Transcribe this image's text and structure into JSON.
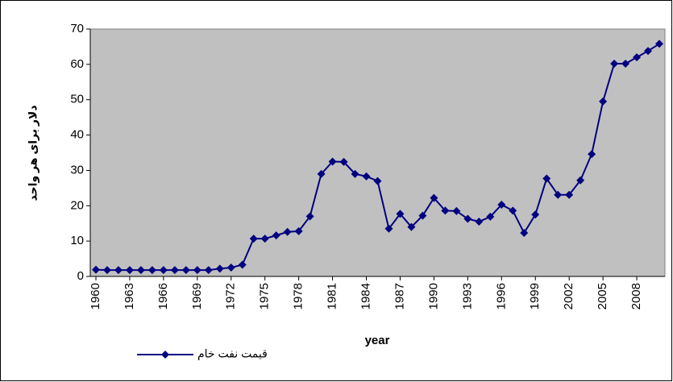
{
  "chart_data": {
    "type": "line",
    "x_label": "year",
    "y_label": "دلار برای هر واحد",
    "x": [
      1960,
      1961,
      1962,
      1963,
      1964,
      1965,
      1966,
      1967,
      1968,
      1969,
      1970,
      1971,
      1972,
      1973,
      1974,
      1975,
      1976,
      1977,
      1978,
      1979,
      1980,
      1981,
      1982,
      1983,
      1984,
      1985,
      1986,
      1987,
      1988,
      1989,
      1990,
      1991,
      1992,
      1993,
      1994,
      1995,
      1996,
      1997,
      1998,
      1999,
      2000,
      2001,
      2002,
      2003,
      2004,
      2005,
      2006,
      2007,
      2008,
      2009,
      2010
    ],
    "series": [
      {
        "name": "قیمت نفت خام",
        "color": "#000080",
        "values": [
          1.9,
          1.8,
          1.8,
          1.8,
          1.8,
          1.8,
          1.8,
          1.8,
          1.8,
          1.8,
          1.8,
          2.2,
          2.5,
          3.3,
          10.7,
          10.7,
          11.6,
          12.6,
          12.8,
          17,
          29,
          32.5,
          32.4,
          29,
          28.3,
          27,
          13.5,
          17.7,
          14,
          17.2,
          22.2,
          18.6,
          18.5,
          16.3,
          15.5,
          16.9,
          20.3,
          18.6,
          12.3,
          17.5,
          27.7,
          23.1,
          23.1,
          27.2,
          34.6,
          49.5,
          60.2,
          60.2,
          62,
          63.8,
          65.8
        ]
      }
    ],
    "xlim": [
      1959.5,
      2010.5
    ],
    "xticks": [
      1960,
      1963,
      1966,
      1969,
      1972,
      1975,
      1978,
      1981,
      1984,
      1987,
      1990,
      1993,
      1996,
      1999,
      2002,
      2005,
      2008
    ],
    "ylim": [
      0,
      70
    ],
    "yticks": [
      0,
      10,
      20,
      30,
      40,
      50,
      60,
      70
    ],
    "grid": false,
    "plot_background": "#c0c0c0",
    "legend": "bottom-left"
  }
}
